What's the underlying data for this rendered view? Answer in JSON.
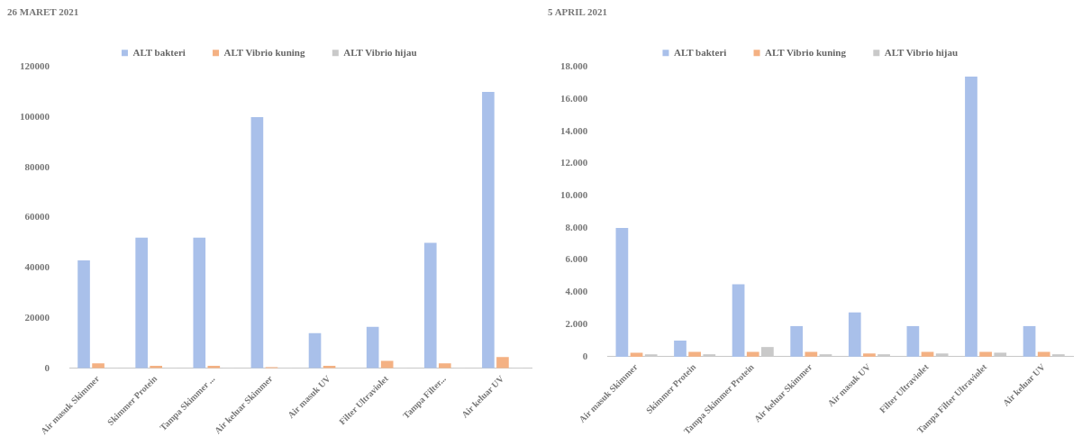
{
  "chart_data": [
    {
      "type": "bar",
      "title": "26 MARET 2021",
      "categories": [
        "Air masuk Skimmer",
        "Skimmer Protein",
        "Tampa Skimmer ...",
        "Air keluar Skimmer",
        "Air masuk UV",
        "Filter Ultraviolet",
        "Tampa Filter...",
        "Air keluar UV"
      ],
      "series": [
        {
          "name": "ALT bakteri",
          "color": "#a9c0ea",
          "values": [
            43000,
            52000,
            52000,
            100000,
            14000,
            16500,
            50000,
            110000
          ]
        },
        {
          "name": "ALT Vibrio kuning",
          "color": "#f4b183",
          "values": [
            2000,
            1000,
            1000,
            500,
            1000,
            3000,
            2000,
            4500
          ]
        },
        {
          "name": "ALT Vibrio hijau",
          "color": "#c9c9c9",
          "values": [
            300,
            300,
            300,
            300,
            300,
            300,
            300,
            300
          ]
        }
      ],
      "ylim": [
        0,
        120000
      ],
      "yticks": [
        0,
        20000,
        40000,
        60000,
        80000,
        100000,
        120000
      ],
      "grid": false,
      "legend": "top"
    },
    {
      "type": "bar",
      "title": "5 APRIL 2021",
      "categories": [
        "Air masuk Skimmer",
        "Skimmer Protein",
        "Tampa Skimmer Protein",
        "Air keluar Skimmer",
        "Air masuk UV",
        "Filter Ultraviolet",
        "Tampa Filter Ultraviolet",
        "Air keluar UV"
      ],
      "series": [
        {
          "name": "ALT bakteri",
          "color": "#a9c0ea",
          "values": [
            8000,
            1000,
            4500,
            1900,
            2750,
            1900,
            17400,
            1900
          ]
        },
        {
          "name": "ALT Vibrio kuning",
          "color": "#f4b183",
          "values": [
            250,
            300,
            300,
            300,
            200,
            300,
            300,
            300
          ]
        },
        {
          "name": "ALT Vibrio hijau",
          "color": "#c9c9c9",
          "values": [
            150,
            150,
            600,
            150,
            150,
            200,
            250,
            150
          ]
        }
      ],
      "ylim": [
        0,
        18000
      ],
      "yticks": [
        {
          "value": 0,
          "label": "0"
        },
        {
          "value": 2000,
          "label": "2.000"
        },
        {
          "value": 4000,
          "label": "4.000"
        },
        {
          "value": 6000,
          "label": "6.000"
        },
        {
          "value": 8000,
          "label": "8.000"
        },
        {
          "value": 10000,
          "label": "10.000"
        },
        {
          "value": 12000,
          "label": "12.000"
        },
        {
          "value": 14000,
          "label": "14.000"
        },
        {
          "value": 16000,
          "label": "16.000"
        },
        {
          "value": 18000,
          "label": "18.000"
        }
      ],
      "grid": false,
      "legend": "top"
    }
  ]
}
